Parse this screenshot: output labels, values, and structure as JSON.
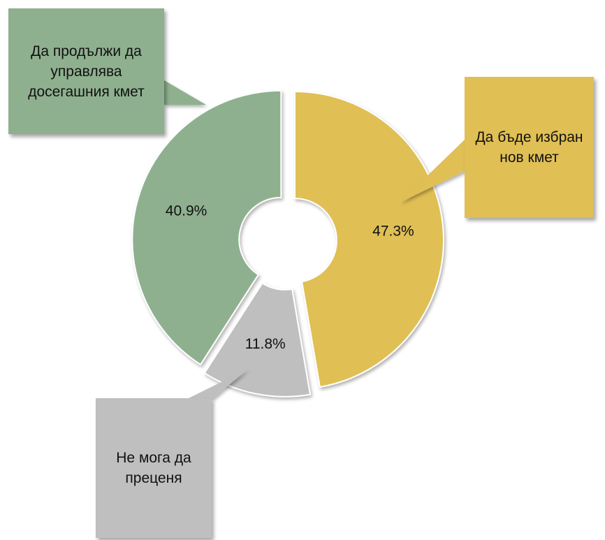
{
  "chart_data": {
    "type": "pie",
    "donut": true,
    "categories": [
      "Да бъде избран нов кмет",
      "Не мога да преценя",
      "Да продължи да управлява досегашния кмет"
    ],
    "values": [
      47.3,
      11.8,
      40.9
    ],
    "value_labels": [
      "47.3%",
      "11.8%",
      "40.9%"
    ],
    "colors": [
      "#e0bf55",
      "#bfbfbf",
      "#8fb08f"
    ]
  }
}
